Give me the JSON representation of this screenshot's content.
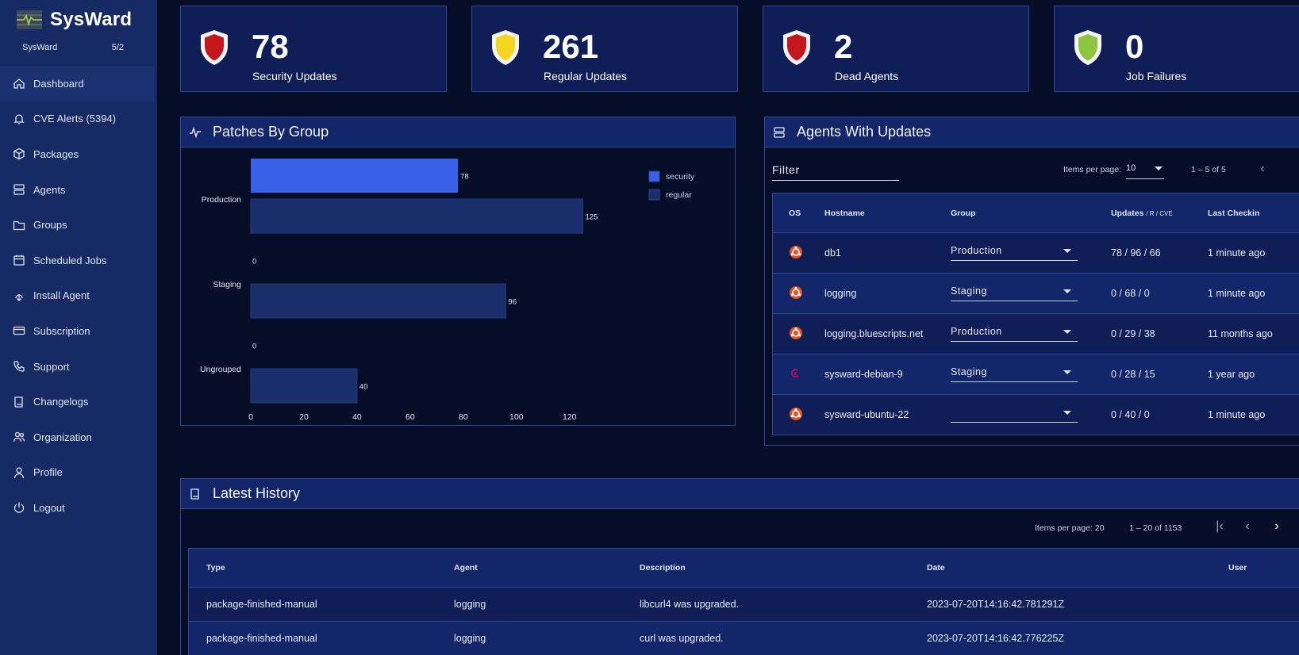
{
  "app": {
    "name": "SysWard",
    "org_name": "SysWard",
    "org_count": "5/2"
  },
  "nav": [
    {
      "label": "Dashboard",
      "icon": "home-icon"
    },
    {
      "label": "CVE Alerts (5394)",
      "icon": "bell-icon"
    },
    {
      "label": "Packages",
      "icon": "package-icon"
    },
    {
      "label": "Agents",
      "icon": "server-icon"
    },
    {
      "label": "Groups",
      "icon": "folder-icon"
    },
    {
      "label": "Scheduled Jobs",
      "icon": "calendar-icon"
    },
    {
      "label": "Install Agent",
      "icon": "download-icon"
    },
    {
      "label": "Subscription",
      "icon": "card-icon"
    },
    {
      "label": "Support",
      "icon": "phone-icon"
    },
    {
      "label": "Changelogs",
      "icon": "book-icon"
    },
    {
      "label": "Organization",
      "icon": "users-icon"
    },
    {
      "label": "Profile",
      "icon": "user-icon"
    },
    {
      "label": "Logout",
      "icon": "power-icon"
    }
  ],
  "stats": [
    {
      "value": "78",
      "label": "Security Updates",
      "color": "#c4171d"
    },
    {
      "value": "261",
      "label": "Regular Updates",
      "color": "#f5d61e"
    },
    {
      "value": "2",
      "label": "Dead Agents",
      "color": "#c4171d"
    },
    {
      "value": "0",
      "label": "Job Failures",
      "color": "#8cc63f"
    }
  ],
  "patches": {
    "title": "Patches By Group",
    "chart_data": {
      "type": "bar",
      "orientation": "horizontal",
      "categories": [
        "Production",
        "Staging",
        "Ungrouped"
      ],
      "series": [
        {
          "name": "security",
          "values": [
            78,
            0,
            0
          ],
          "color": "#3a62e8"
        },
        {
          "name": "regular",
          "values": [
            125,
            96,
            40
          ],
          "color": "#192e6b"
        }
      ],
      "xticks": [
        "0",
        "20",
        "40",
        "60",
        "80",
        "100",
        "120"
      ],
      "xlim": [
        0,
        135
      ],
      "legend_position": "top-right"
    }
  },
  "agents": {
    "title": "Agents With Updates",
    "filter_label": "Filter",
    "items_per_page_label": "Items per page:",
    "items_per_page_value": "10",
    "range": "1 – 5 of 5",
    "columns": [
      "OS",
      "Hostname",
      "Group",
      "Updates",
      "/ R / CVE",
      "Last Checkin"
    ],
    "rows": [
      {
        "os": "ubuntu-icon",
        "hostname": "db1",
        "group": "Production",
        "updates": "78 / 96 / 66",
        "checkin": "1 minute ago"
      },
      {
        "os": "ubuntu-icon",
        "hostname": "logging",
        "group": "Staging",
        "updates": "0 / 68 / 0",
        "checkin": "1 minute ago"
      },
      {
        "os": "ubuntu-icon",
        "hostname": "logging.bluescripts.net",
        "group": "Production",
        "updates": "0 / 29 / 38",
        "checkin": "11 months ago"
      },
      {
        "os": "debian-icon",
        "hostname": "sysward-debian-9",
        "group": "Staging",
        "updates": "0 / 28 / 15",
        "checkin": "1 year ago"
      },
      {
        "os": "ubuntu-icon",
        "hostname": "sysward-ubuntu-22",
        "group": "",
        "updates": "0 / 40 / 0",
        "checkin": "1 minute ago"
      }
    ]
  },
  "history": {
    "title": "Latest History",
    "items_per_page_label": "Items per page: 20",
    "range": "1 – 20 of 1153",
    "columns": [
      "Type",
      "Agent",
      "Description",
      "Date",
      "User"
    ],
    "rows": [
      {
        "type": "package-finished-manual",
        "agent": "logging",
        "description": "libcurl4 was upgraded.",
        "date": "2023-07-20T14:16:42.781291Z",
        "user": ""
      },
      {
        "type": "package-finished-manual",
        "agent": "logging",
        "description": "curl was upgraded.",
        "date": "2023-07-20T14:16:42.776225Z",
        "user": ""
      }
    ]
  }
}
